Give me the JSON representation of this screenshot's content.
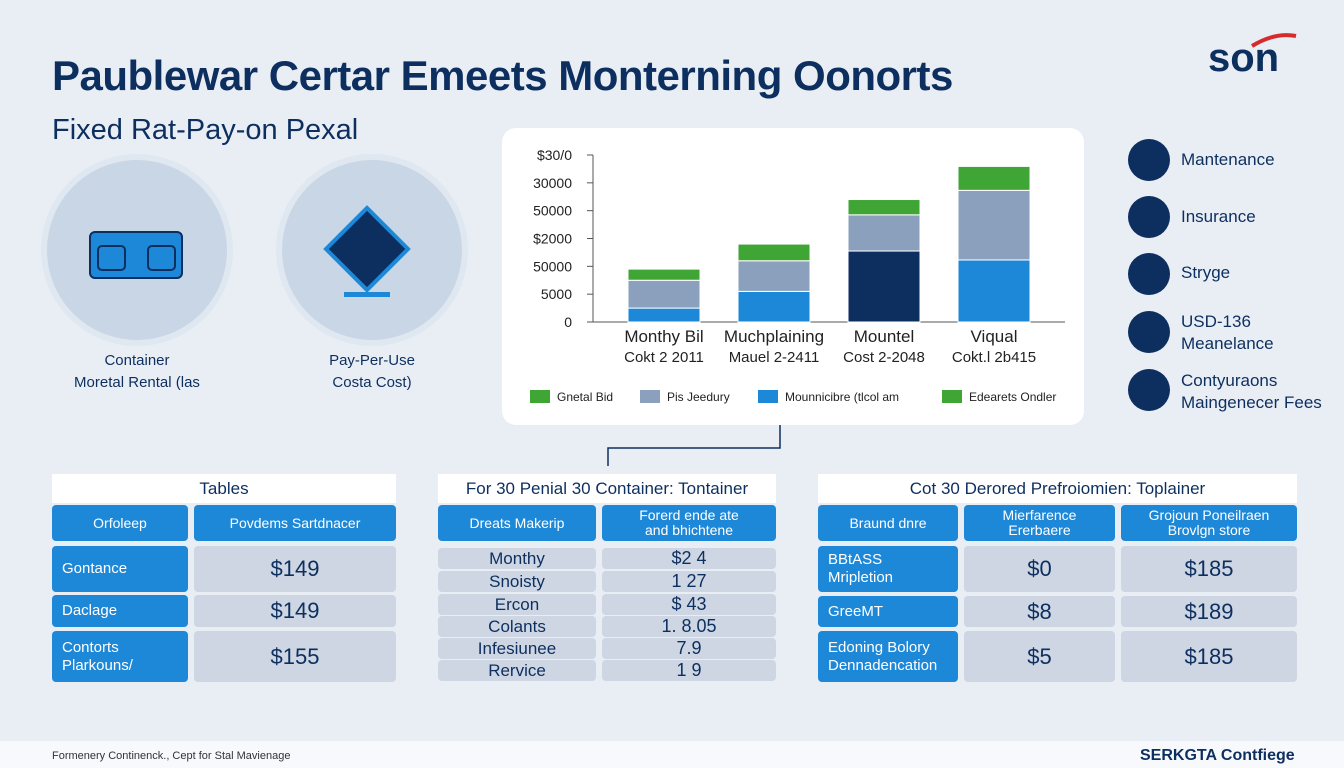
{
  "header": {
    "title": "Paublewar Certar Emeets Monterning Oonorts",
    "subtitle": "Fixed Rat-Pay-on Pexal",
    "logo": "son"
  },
  "features": [
    {
      "title": "Container",
      "caption": "Moretal Rental (las"
    },
    {
      "title": "Pay-Per-Use",
      "caption": "Costa Cost)"
    }
  ],
  "side_list": [
    "Mantenance",
    "Insurance",
    "Stryge",
    "USD-136\nMeanelance",
    "Contyuraons\nMaingenecer Fees"
  ],
  "chart_data": {
    "type": "stacked-bar",
    "categories": [
      "Monthy Bil",
      "Muchplaining",
      "Mountel",
      "Viqual"
    ],
    "category_sublabels": [
      "Cokt 2 2011",
      "Mauel 2-2411",
      "Cost 2-2048",
      "Cokt.l 2b415"
    ],
    "series": [
      {
        "name": "Mounnicibre (tlcol am",
        "color": "#1e88d8",
        "colors": [
          "#1e88d8",
          "#1e88d8",
          "#0d2f5f",
          "#1e88d8"
        ],
        "values": [
          0.5,
          1.1,
          2.55,
          2.23
        ]
      },
      {
        "name": "Pis Jeedury",
        "color": "#8aa0bd",
        "values": [
          1.0,
          1.1,
          1.3,
          2.5
        ]
      },
      {
        "name": "Gnetal Bid",
        "color": "#3fa535",
        "values": [
          0.4,
          0.6,
          0.55,
          0.86
        ]
      },
      {
        "name": "Edearets Ondler",
        "color": "#3fa535",
        "values": [
          null,
          null,
          null,
          null
        ]
      }
    ],
    "ylim": [
      0,
      6
    ],
    "yticks": [
      0,
      {
        "value": 1,
        "label": "5000"
      },
      {
        "value": 2,
        "label": "50000"
      },
      {
        "value": 3,
        "label": "$2000"
      },
      {
        "value": 4,
        "label": "50000"
      },
      {
        "value": 5,
        "label": "30000"
      },
      {
        "value": 6,
        "label": "$30/0"
      }
    ]
  },
  "tables": [
    {
      "title": "Tables",
      "header": [
        "Orfoleep",
        "Povdems Sartdnacer"
      ],
      "rows": [
        [
          "Gontance",
          "$149"
        ],
        [
          "Daclage",
          "$149"
        ],
        [
          "Contorts\nPlarkouns/",
          "$155"
        ]
      ]
    },
    {
      "title": "For 30 Penial 30 Container: Tontainer",
      "header": [
        "Dreats Makerip",
        "Forerd ende ate\nand bhichtene"
      ],
      "rows": [
        [
          "Monthy",
          "$2 4"
        ],
        [
          "Snoisty",
          "1 27"
        ],
        [
          "Ercon",
          "$ 43"
        ],
        [
          "Colants",
          "1. 8.05"
        ],
        [
          "Infesiunee",
          "7.9"
        ],
        [
          "Rervice",
          "1 9"
        ]
      ]
    },
    {
      "title": "Cot 30 Derored Prefroiomien: Toplainer",
      "header": [
        "Braund dnre",
        "Mierfarence\nErerbaere",
        "Grojoun Poneilraen\nBrovlgn store"
      ],
      "rows": [
        [
          "BBtASS\nMripletion",
          "$0",
          "$185"
        ],
        [
          "GreeMT",
          "$8",
          "$189"
        ],
        [
          "Edoning Bolory\nDennadencation",
          "$5",
          "$185"
        ]
      ]
    }
  ],
  "footer": {
    "left": "Formenery Continenck., Cept for Stal Mavienage",
    "right": "SERKGTA Contfiege"
  }
}
